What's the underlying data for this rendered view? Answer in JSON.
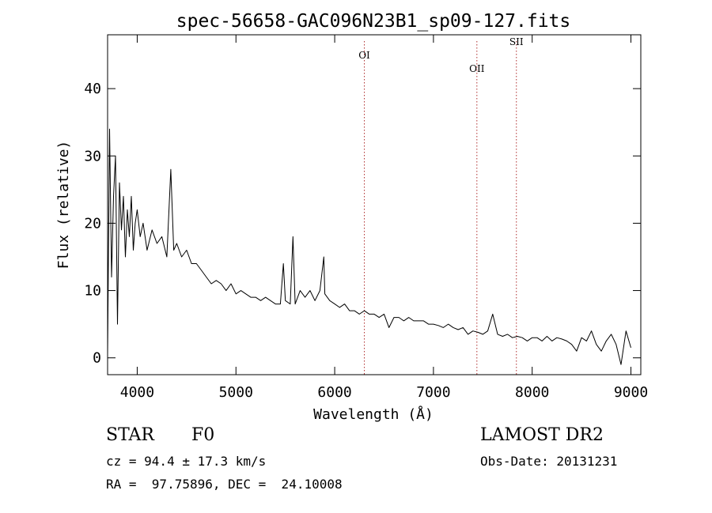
{
  "chart_data": {
    "type": "line",
    "title": "spec-56658-GAC096N23B1_sp09-127.fits",
    "xlabel": "Wavelength (Å)",
    "ylabel": "Flux (relative)",
    "xlim": [
      3700,
      9100
    ],
    "ylim": [
      -2.5,
      48
    ],
    "xticks": [
      4000,
      5000,
      6000,
      7000,
      8000,
      9000
    ],
    "xtick_labels": [
      "4000",
      "5000",
      "6000",
      "7000",
      "8000",
      "9000"
    ],
    "yticks": [
      0,
      10,
      20,
      30,
      40
    ],
    "ytick_labels": [
      "0",
      "10",
      "20",
      "30",
      "40"
    ],
    "grid": false,
    "line_color": "#000000",
    "marker_color": "#b03030",
    "series": [
      {
        "x": [
          3700,
          3720,
          3740,
          3760,
          3780,
          3800,
          3820,
          3840,
          3860,
          3880,
          3900,
          3920,
          3940,
          3960,
          3980,
          4000,
          4030,
          4060,
          4100,
          4150,
          4200,
          4250,
          4300,
          4340,
          4370,
          4400,
          4450,
          4500,
          4550,
          4600,
          4650,
          4700,
          4750,
          4800,
          4850,
          4900,
          4950,
          5000,
          5050,
          5100,
          5150,
          5200,
          5250,
          5300,
          5350,
          5400,
          5450,
          5480,
          5500,
          5550,
          5577,
          5600,
          5650,
          5700,
          5750,
          5800,
          5850,
          5890,
          5900,
          5950,
          6000,
          6050,
          6100,
          6150,
          6200,
          6250,
          6300,
          6350,
          6400,
          6450,
          6500,
          6550,
          6600,
          6650,
          6700,
          6750,
          6800,
          6850,
          6900,
          6950,
          7000,
          7050,
          7100,
          7150,
          7200,
          7250,
          7300,
          7350,
          7400,
          7450,
          7500,
          7550,
          7600,
          7650,
          7700,
          7750,
          7800,
          7850,
          7900,
          7950,
          8000,
          8050,
          8100,
          8150,
          8200,
          8250,
          8300,
          8350,
          8400,
          8450,
          8500,
          8550,
          8600,
          8650,
          8700,
          8750,
          8800,
          8850,
          8900,
          8950,
          9000
        ],
        "values": [
          0.5,
          34,
          12,
          24,
          30,
          5,
          26,
          19,
          24,
          15,
          22,
          18,
          24,
          16,
          20,
          22,
          18,
          20,
          16,
          19,
          17,
          18,
          15,
          28,
          16,
          17,
          15,
          16,
          14,
          14,
          13,
          12,
          11,
          11.5,
          11,
          10,
          11,
          9.5,
          10,
          9.5,
          9,
          9,
          8.5,
          9,
          8.5,
          8,
          8,
          14,
          8.5,
          8,
          18,
          8,
          10,
          9,
          10,
          8.5,
          10,
          15,
          9.5,
          8.5,
          8,
          7.5,
          8,
          7,
          7,
          6.5,
          7,
          6.5,
          6.5,
          6,
          6.5,
          4.5,
          6,
          6,
          5.5,
          6,
          5.5,
          5.5,
          5.5,
          5,
          5,
          4.8,
          4.5,
          5,
          4.5,
          4.2,
          4.5,
          3.5,
          4,
          3.8,
          3.5,
          4,
          6.5,
          3.5,
          3.2,
          3.5,
          3,
          3.2,
          3,
          2.5,
          3,
          3,
          2.5,
          3.2,
          2.5,
          3,
          2.8,
          2.5,
          2,
          1,
          3,
          2.5,
          4,
          2,
          1,
          2.5,
          3.5,
          2,
          -1,
          4,
          1.5
        ]
      }
    ],
    "annotations": [
      {
        "label": "OI",
        "x": 6300,
        "label_y": 44.5
      },
      {
        "label": "OII",
        "x": 7440,
        "label_y": 42.5
      },
      {
        "label": "SII",
        "x": 7840,
        "label_y": 46.5
      }
    ]
  },
  "info": {
    "class": "STAR",
    "subclass": "F0",
    "survey": "LAMOST DR2",
    "cz": "cz = 94.4 ± 17.3 km/s",
    "obs_date": "Obs-Date: 20131231",
    "coords": "RA =  97.75896, DEC =  24.10008"
  }
}
